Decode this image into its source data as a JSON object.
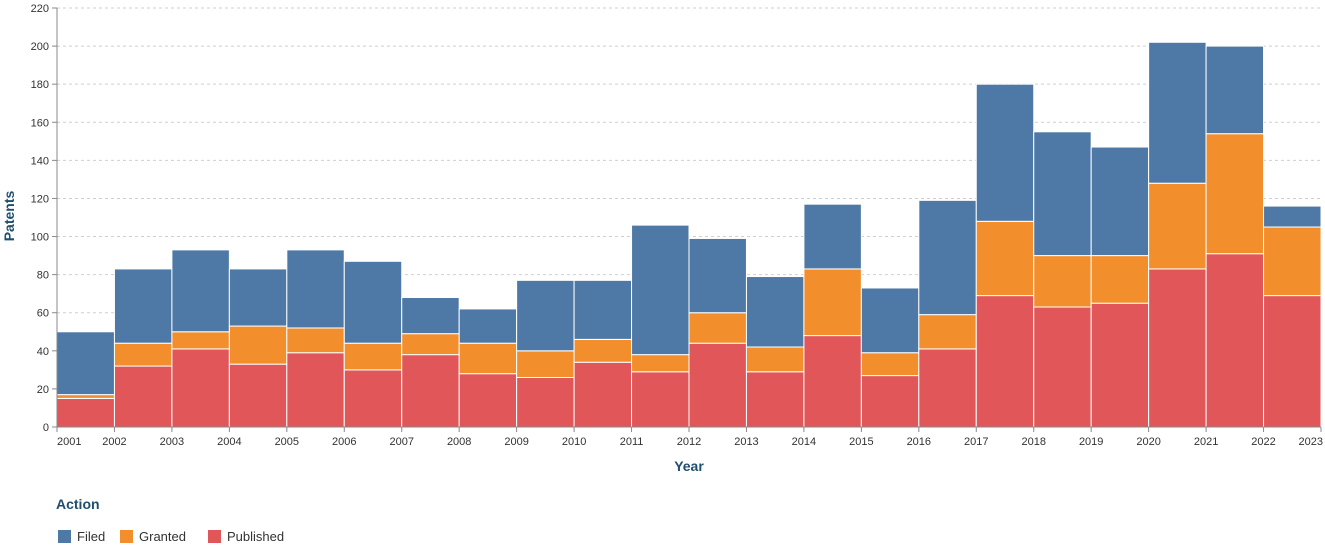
{
  "chart_data": {
    "type": "bar",
    "stacked": true,
    "title": "",
    "xlabel": "Year",
    "ylabel": "Patents",
    "ylim": [
      0,
      220
    ],
    "yticks": [
      "0",
      "20",
      "40",
      "60",
      "80",
      "100",
      "120",
      "140",
      "160",
      "180",
      "200",
      "220"
    ],
    "grid": true,
    "x_tick_labels": [
      "2001",
      "2002",
      "2003",
      "2004",
      "2005",
      "2006",
      "2007",
      "2008",
      "2009",
      "2010",
      "2011",
      "2012",
      "2013",
      "2014",
      "2015",
      "2016",
      "2017",
      "2018",
      "2019",
      "2020",
      "2021",
      "2022",
      "2023"
    ],
    "categories": [
      "2001",
      "2002",
      "2003",
      "2004",
      "2005",
      "2006",
      "2007",
      "2008",
      "2009",
      "2010",
      "2011",
      "2012",
      "2013",
      "2014",
      "2015",
      "2016",
      "2017",
      "2018",
      "2019",
      "2020",
      "2021",
      "2022"
    ],
    "series": [
      {
        "name": "Published",
        "color": "#e15759",
        "values": [
          15,
          32,
          41,
          33,
          39,
          30,
          38,
          28,
          26,
          34,
          29,
          44,
          29,
          48,
          27,
          41,
          69,
          63,
          65,
          83,
          91,
          69
        ]
      },
      {
        "name": "Granted",
        "color": "#f28e2b",
        "values": [
          2,
          12,
          9,
          20,
          13,
          14,
          11,
          16,
          14,
          12,
          9,
          16,
          13,
          35,
          12,
          18,
          39,
          27,
          25,
          45,
          63,
          36
        ]
      },
      {
        "name": "Filed",
        "color": "#4e79a7",
        "values": [
          33,
          39,
          43,
          30,
          41,
          43,
          19,
          18,
          37,
          31,
          68,
          39,
          37,
          34,
          34,
          60,
          72,
          65,
          57,
          74,
          46,
          11
        ]
      }
    ],
    "legend": {
      "title": "Action",
      "position": "bottom-left",
      "order": [
        "Filed",
        "Granted",
        "Published"
      ]
    }
  }
}
